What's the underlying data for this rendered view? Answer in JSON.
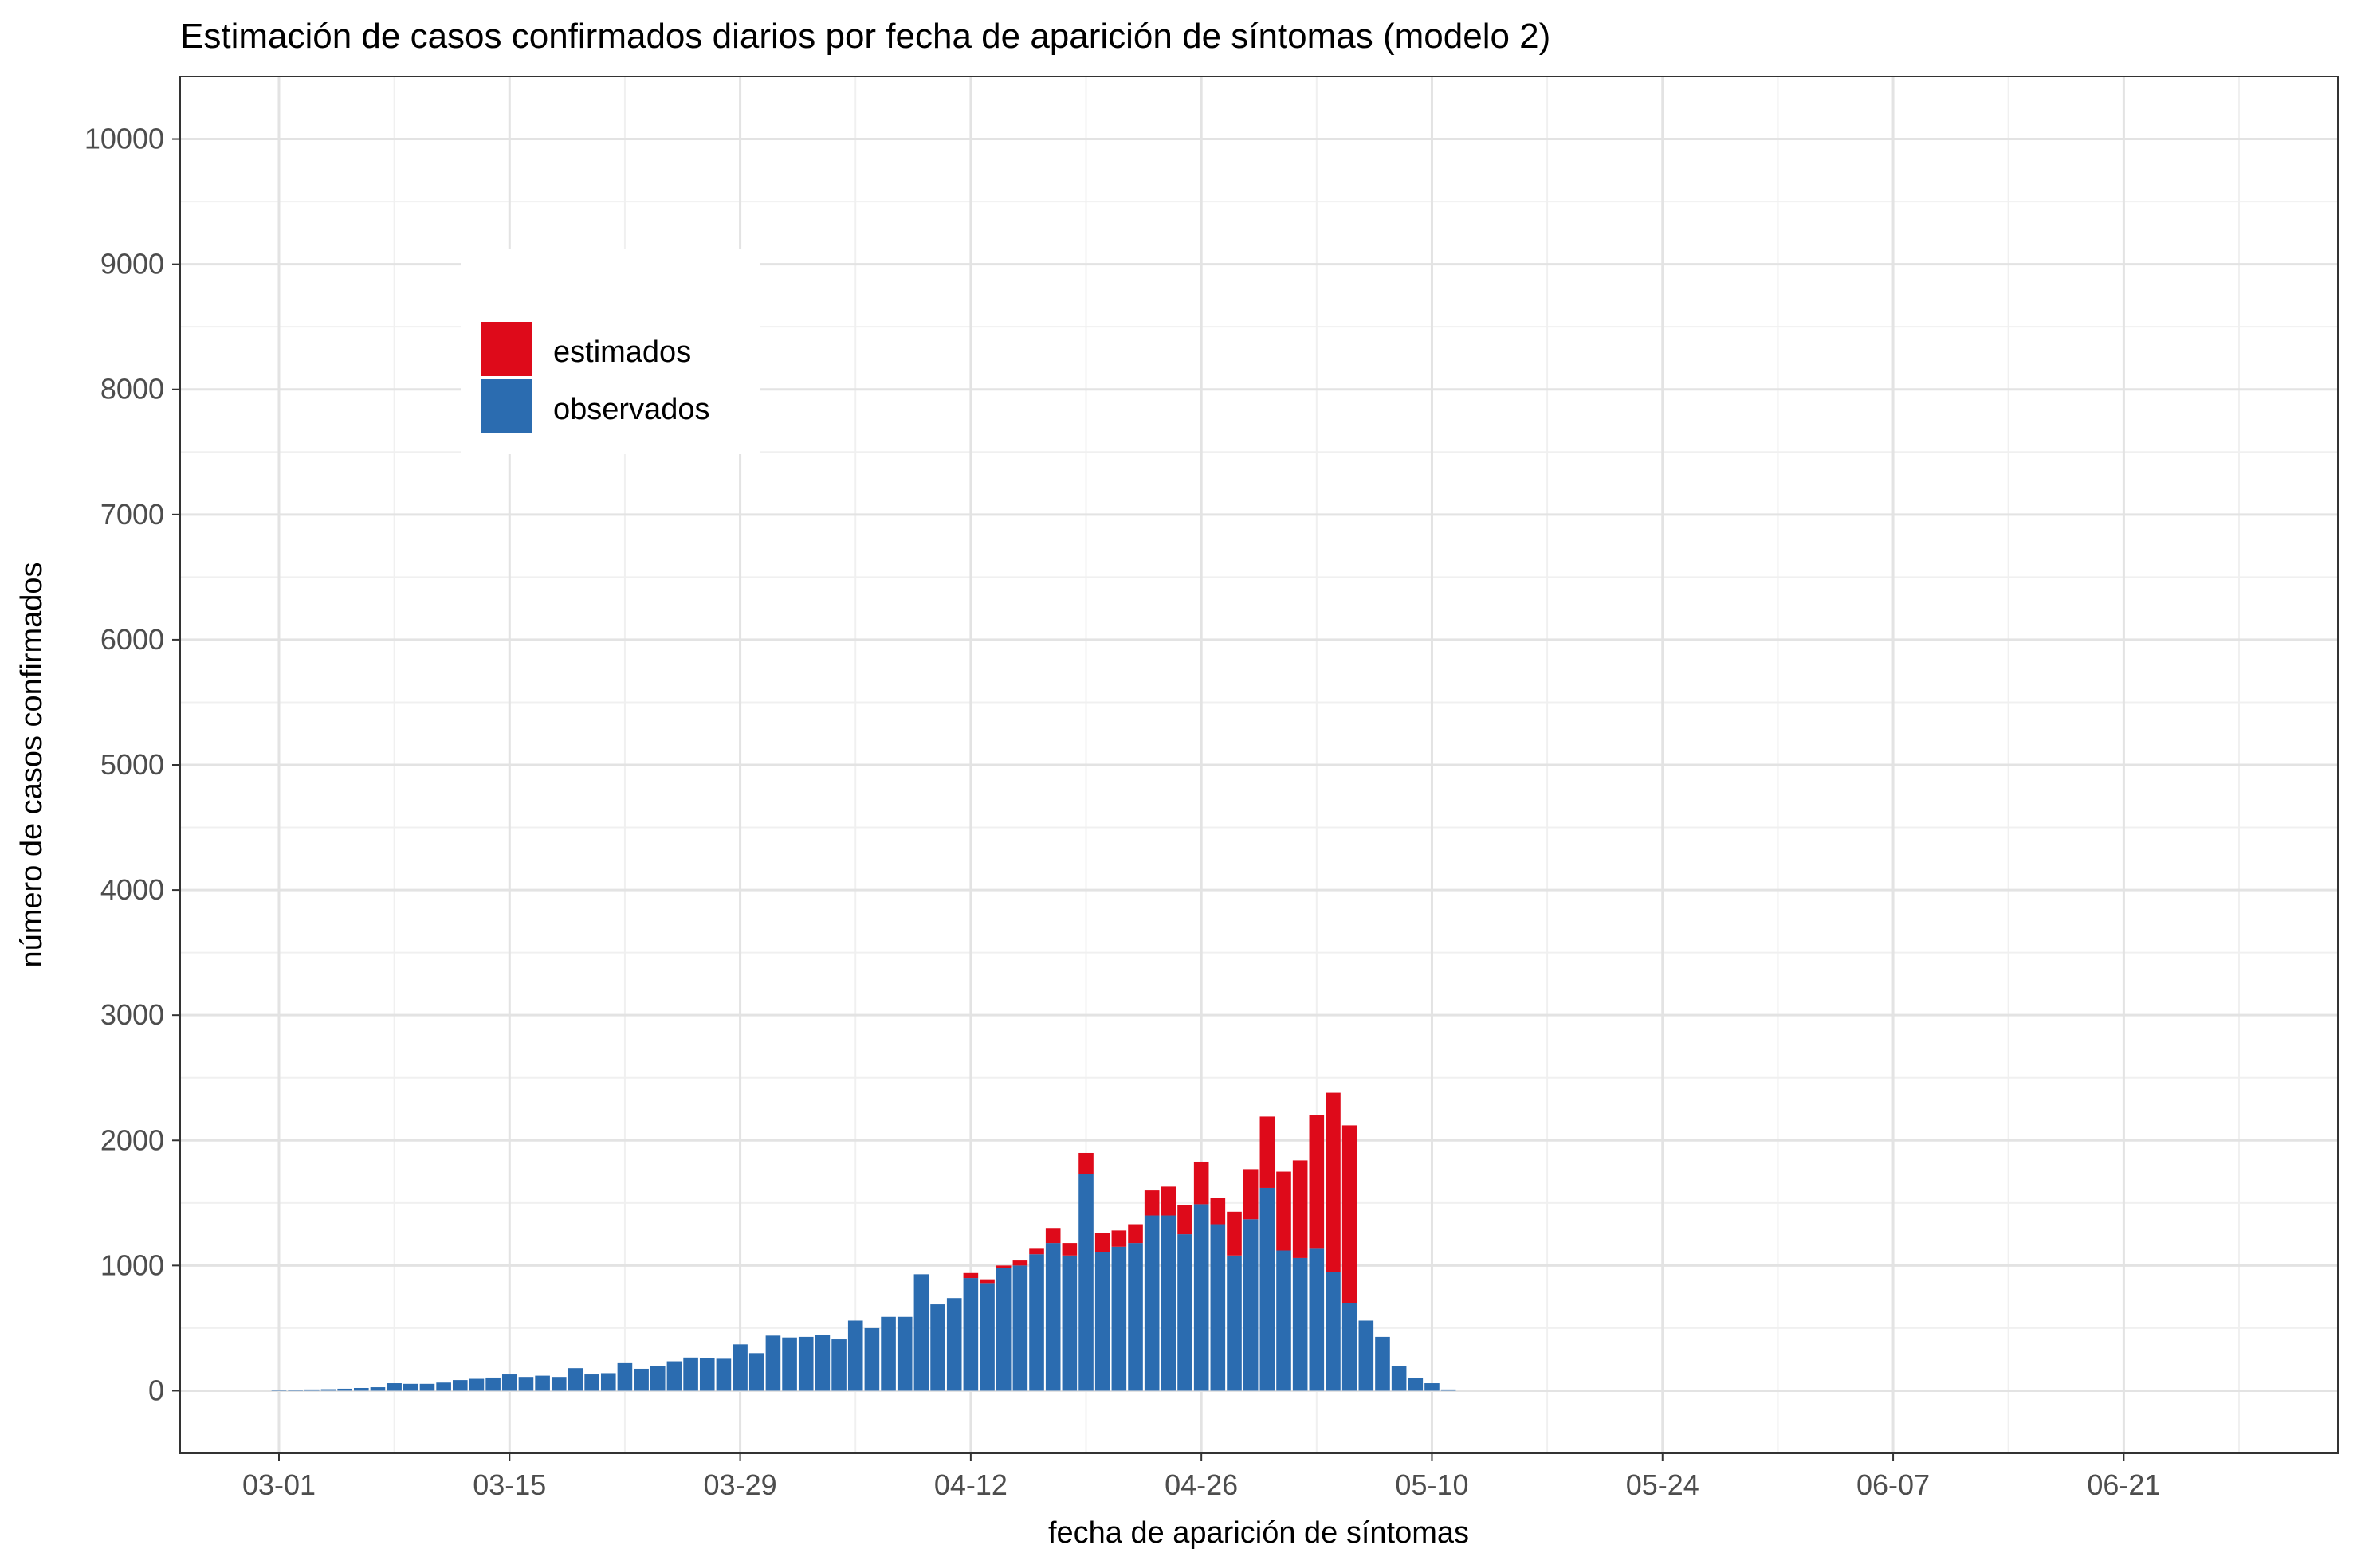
{
  "chart_data": {
    "type": "bar",
    "stacked": true,
    "title": "Estimación de casos confirmados diarios por fecha de aparición de síntomas (modelo 2)",
    "xlabel": "fecha de aparición de síntomas",
    "ylabel": "número de casos confirmados",
    "x_tick_labels": [
      "03-01",
      "03-15",
      "03-29",
      "04-12",
      "04-26",
      "05-10",
      "05-24",
      "06-07",
      "06-21"
    ],
    "y_tick_labels": [
      "0",
      "1000",
      "2000",
      "3000",
      "4000",
      "5000",
      "6000",
      "7000",
      "8000",
      "9000",
      "10000"
    ],
    "ylim": [
      -500,
      10500
    ],
    "xlim": [
      "2020-02-24",
      "2020-07-04"
    ],
    "grid": true,
    "legend_position": "top-left inside plot",
    "categories": [
      "2020-03-01",
      "2020-03-02",
      "2020-03-03",
      "2020-03-04",
      "2020-03-05",
      "2020-03-06",
      "2020-03-07",
      "2020-03-08",
      "2020-03-09",
      "2020-03-10",
      "2020-03-11",
      "2020-03-12",
      "2020-03-13",
      "2020-03-14",
      "2020-03-15",
      "2020-03-16",
      "2020-03-17",
      "2020-03-18",
      "2020-03-19",
      "2020-03-20",
      "2020-03-21",
      "2020-03-22",
      "2020-03-23",
      "2020-03-24",
      "2020-03-25",
      "2020-03-26",
      "2020-03-27",
      "2020-03-28",
      "2020-03-29",
      "2020-03-30",
      "2020-03-31",
      "2020-04-01",
      "2020-04-02",
      "2020-04-03",
      "2020-04-04",
      "2020-04-05",
      "2020-04-06",
      "2020-04-07",
      "2020-04-08",
      "2020-04-09",
      "2020-04-10",
      "2020-04-11",
      "2020-04-12",
      "2020-04-13",
      "2020-04-14",
      "2020-04-15",
      "2020-04-16",
      "2020-04-17",
      "2020-04-18",
      "2020-04-19",
      "2020-04-20",
      "2020-04-21",
      "2020-04-22",
      "2020-04-23",
      "2020-04-24",
      "2020-04-25",
      "2020-04-26",
      "2020-04-27",
      "2020-04-28",
      "2020-04-29",
      "2020-04-30",
      "2020-05-01",
      "2020-05-02",
      "2020-05-03",
      "2020-05-04",
      "2020-05-05",
      "2020-05-06",
      "2020-05-07",
      "2020-05-08",
      "2020-05-09",
      "2020-05-10",
      "2020-05-11",
      "2020-05-12"
    ],
    "series": [
      {
        "name": "observados",
        "color": "#2b6cb0",
        "values": [
          8,
          8,
          10,
          12,
          16,
          22,
          28,
          60,
          55,
          55,
          65,
          85,
          95,
          105,
          130,
          110,
          120,
          110,
          180,
          130,
          140,
          220,
          175,
          200,
          235,
          265,
          260,
          255,
          370,
          300,
          440,
          425,
          430,
          445,
          410,
          560,
          500,
          590,
          590,
          930,
          690,
          740,
          900,
          860,
          980,
          1000,
          1090,
          1180,
          1080,
          1730,
          1110,
          1150,
          1180,
          1400,
          1400,
          1250,
          1490,
          1330,
          1080,
          1370,
          1620,
          1120,
          1060,
          1140,
          950,
          700,
          560,
          430,
          195,
          100,
          60,
          10,
          0
        ]
      },
      {
        "name": "estimados",
        "color": "#de0a1a",
        "values": [
          0,
          0,
          0,
          0,
          0,
          0,
          0,
          0,
          0,
          0,
          0,
          0,
          0,
          0,
          0,
          0,
          0,
          0,
          0,
          0,
          0,
          0,
          0,
          0,
          0,
          0,
          0,
          0,
          0,
          0,
          0,
          0,
          0,
          0,
          0,
          0,
          0,
          0,
          0,
          0,
          0,
          0,
          40,
          30,
          20,
          40,
          50,
          120,
          100,
          170,
          150,
          130,
          150,
          200,
          230,
          230,
          340,
          210,
          350,
          400,
          570,
          630,
          780,
          1060,
          1430,
          1420,
          0,
          0,
          0,
          0,
          0,
          0,
          0
        ]
      }
    ]
  }
}
